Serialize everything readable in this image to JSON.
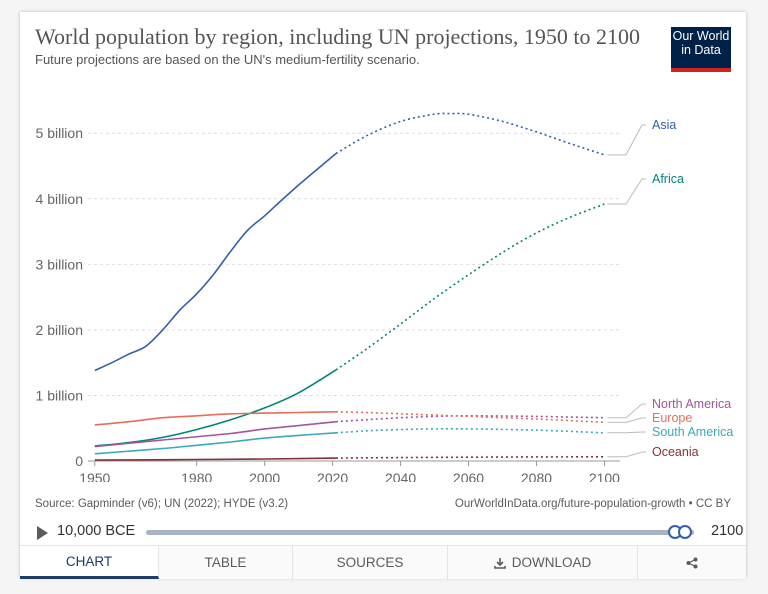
{
  "header": {
    "title": "World population by region, including UN projections, 1950 to 2100",
    "subtitle": "Future projections are based on the UN's medium-fertility scenario.",
    "logo_line1": "Our World",
    "logo_line2": "in Data"
  },
  "footer": {
    "source": "Source: Gapminder (v6); UN (2022); HYDE (v3.2)",
    "url": "OurWorldInData.org/future-population-growth • CC BY"
  },
  "timeline": {
    "start_label": "10,000 BCE",
    "end_label": "2100",
    "play_icon": "play-icon"
  },
  "tabs": [
    {
      "label": "CHART",
      "active": true
    },
    {
      "label": "TABLE"
    },
    {
      "label": "SOURCES"
    },
    {
      "label": "DOWNLOAD",
      "icon": "download-icon"
    },
    {
      "label": "",
      "icon": "share-icon"
    }
  ],
  "chart_data": {
    "type": "line",
    "title": "World population by region, including UN projections, 1950 to 2100",
    "subtitle": "Future projections are based on the UN's medium-fertility scenario.",
    "x_ticks": [
      1950,
      1980,
      2000,
      2020,
      2040,
      2060,
      2080,
      2100
    ],
    "y_ticks": [
      0,
      1,
      2,
      3,
      4,
      5
    ],
    "y_tick_labels": [
      "0",
      "1 billion",
      "2 billion",
      "3 billion",
      "4 billion",
      "5 billion"
    ],
    "xlim": [
      1948,
      2104
    ],
    "ylim": [
      0,
      5.4
    ],
    "projection_start": 2021,
    "grid": "horizontal dashed",
    "legend": "right, end labels",
    "series": [
      {
        "name": "Asia",
        "color": "#3360a9",
        "x": [
          1950,
          1955,
          1960,
          1965,
          1970,
          1975,
          1980,
          1985,
          1990,
          1995,
          2000,
          2005,
          2010,
          2015,
          2021,
          2030,
          2040,
          2050,
          2055,
          2060,
          2070,
          2080,
          2090,
          2100
        ],
        "y": [
          1.38,
          1.5,
          1.63,
          1.75,
          2.0,
          2.3,
          2.55,
          2.85,
          3.2,
          3.52,
          3.74,
          3.98,
          4.21,
          4.43,
          4.69,
          4.96,
          5.18,
          5.29,
          5.3,
          5.29,
          5.18,
          5.02,
          4.84,
          4.67
        ]
      },
      {
        "name": "Africa",
        "color": "#00847e",
        "x": [
          1950,
          1960,
          1970,
          1980,
          1990,
          2000,
          2010,
          2021,
          2030,
          2040,
          2050,
          2060,
          2070,
          2080,
          2090,
          2100
        ],
        "y": [
          0.23,
          0.28,
          0.36,
          0.48,
          0.63,
          0.81,
          1.04,
          1.39,
          1.71,
          2.09,
          2.48,
          2.84,
          3.18,
          3.48,
          3.72,
          3.92
        ]
      },
      {
        "name": "North America",
        "color": "#a2559c",
        "x": [
          1950,
          1970,
          1990,
          2000,
          2010,
          2021,
          2030,
          2040,
          2050,
          2060,
          2080,
          2100
        ],
        "y": [
          0.22,
          0.32,
          0.42,
          0.49,
          0.54,
          0.6,
          0.63,
          0.66,
          0.68,
          0.69,
          0.68,
          0.66
        ]
      },
      {
        "name": "Europe",
        "color": "#e56e5a",
        "x": [
          1950,
          1960,
          1970,
          1980,
          1990,
          2000,
          2010,
          2021,
          2030,
          2040,
          2050,
          2060,
          2080,
          2100
        ],
        "y": [
          0.55,
          0.6,
          0.66,
          0.69,
          0.72,
          0.73,
          0.74,
          0.75,
          0.74,
          0.72,
          0.7,
          0.68,
          0.64,
          0.59
        ]
      },
      {
        "name": "South America",
        "color": "#38aaba",
        "x": [
          1950,
          1960,
          1970,
          1980,
          1990,
          2000,
          2010,
          2021,
          2030,
          2040,
          2050,
          2060,
          2080,
          2100
        ],
        "y": [
          0.11,
          0.15,
          0.19,
          0.24,
          0.29,
          0.35,
          0.39,
          0.43,
          0.46,
          0.48,
          0.49,
          0.49,
          0.47,
          0.43
        ]
      },
      {
        "name": "Oceania",
        "color": "#883039",
        "x": [
          1950,
          1980,
          2000,
          2021,
          2040,
          2060,
          2080,
          2100
        ],
        "y": [
          0.013,
          0.023,
          0.031,
          0.044,
          0.052,
          0.058,
          0.062,
          0.064
        ]
      }
    ]
  }
}
